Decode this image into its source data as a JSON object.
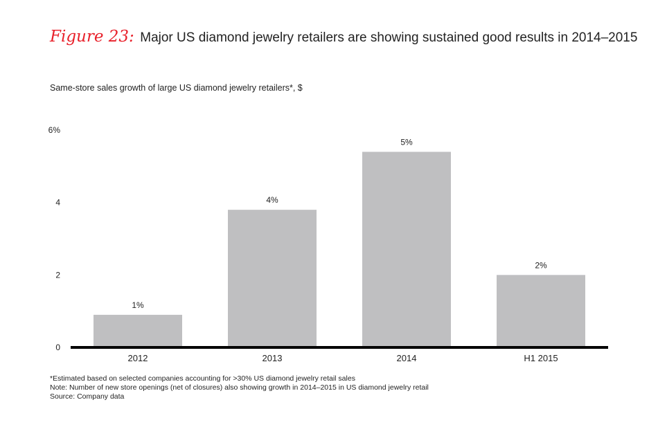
{
  "header": {
    "figure_label": "Figure 23:",
    "title": "Major US diamond jewelry retailers are showing sustained good results in 2014–2015"
  },
  "subtitle": "Same-store sales growth of large US diamond jewelry retailers*, $",
  "chart_data": {
    "type": "bar",
    "title": "Same-store sales growth of large US diamond jewelry retailers*, $",
    "categories": [
      "2012",
      "2013",
      "2014",
      "H1 2015"
    ],
    "values": [
      0.9,
      3.8,
      5.4,
      2.0
    ],
    "data_labels": [
      "1%",
      "4%",
      "5%",
      "2%"
    ],
    "yticks": [
      0,
      2,
      4,
      6
    ],
    "ytick_labels": [
      "0",
      "2",
      "4",
      "6%"
    ],
    "ylim": [
      0,
      6
    ],
    "xlabel": "",
    "ylabel": "",
    "grid": false,
    "bar_color": "#bfbfc1",
    "axis_color": "#000000"
  },
  "notes": [
    "*Estimated based on selected companies accounting for >30% US diamond jewelry retail sales",
    "Note: Number of new store openings (net of closures) also showing growth in 2014–2015 in US diamond jewelry retail",
    "Source: Company data"
  ]
}
